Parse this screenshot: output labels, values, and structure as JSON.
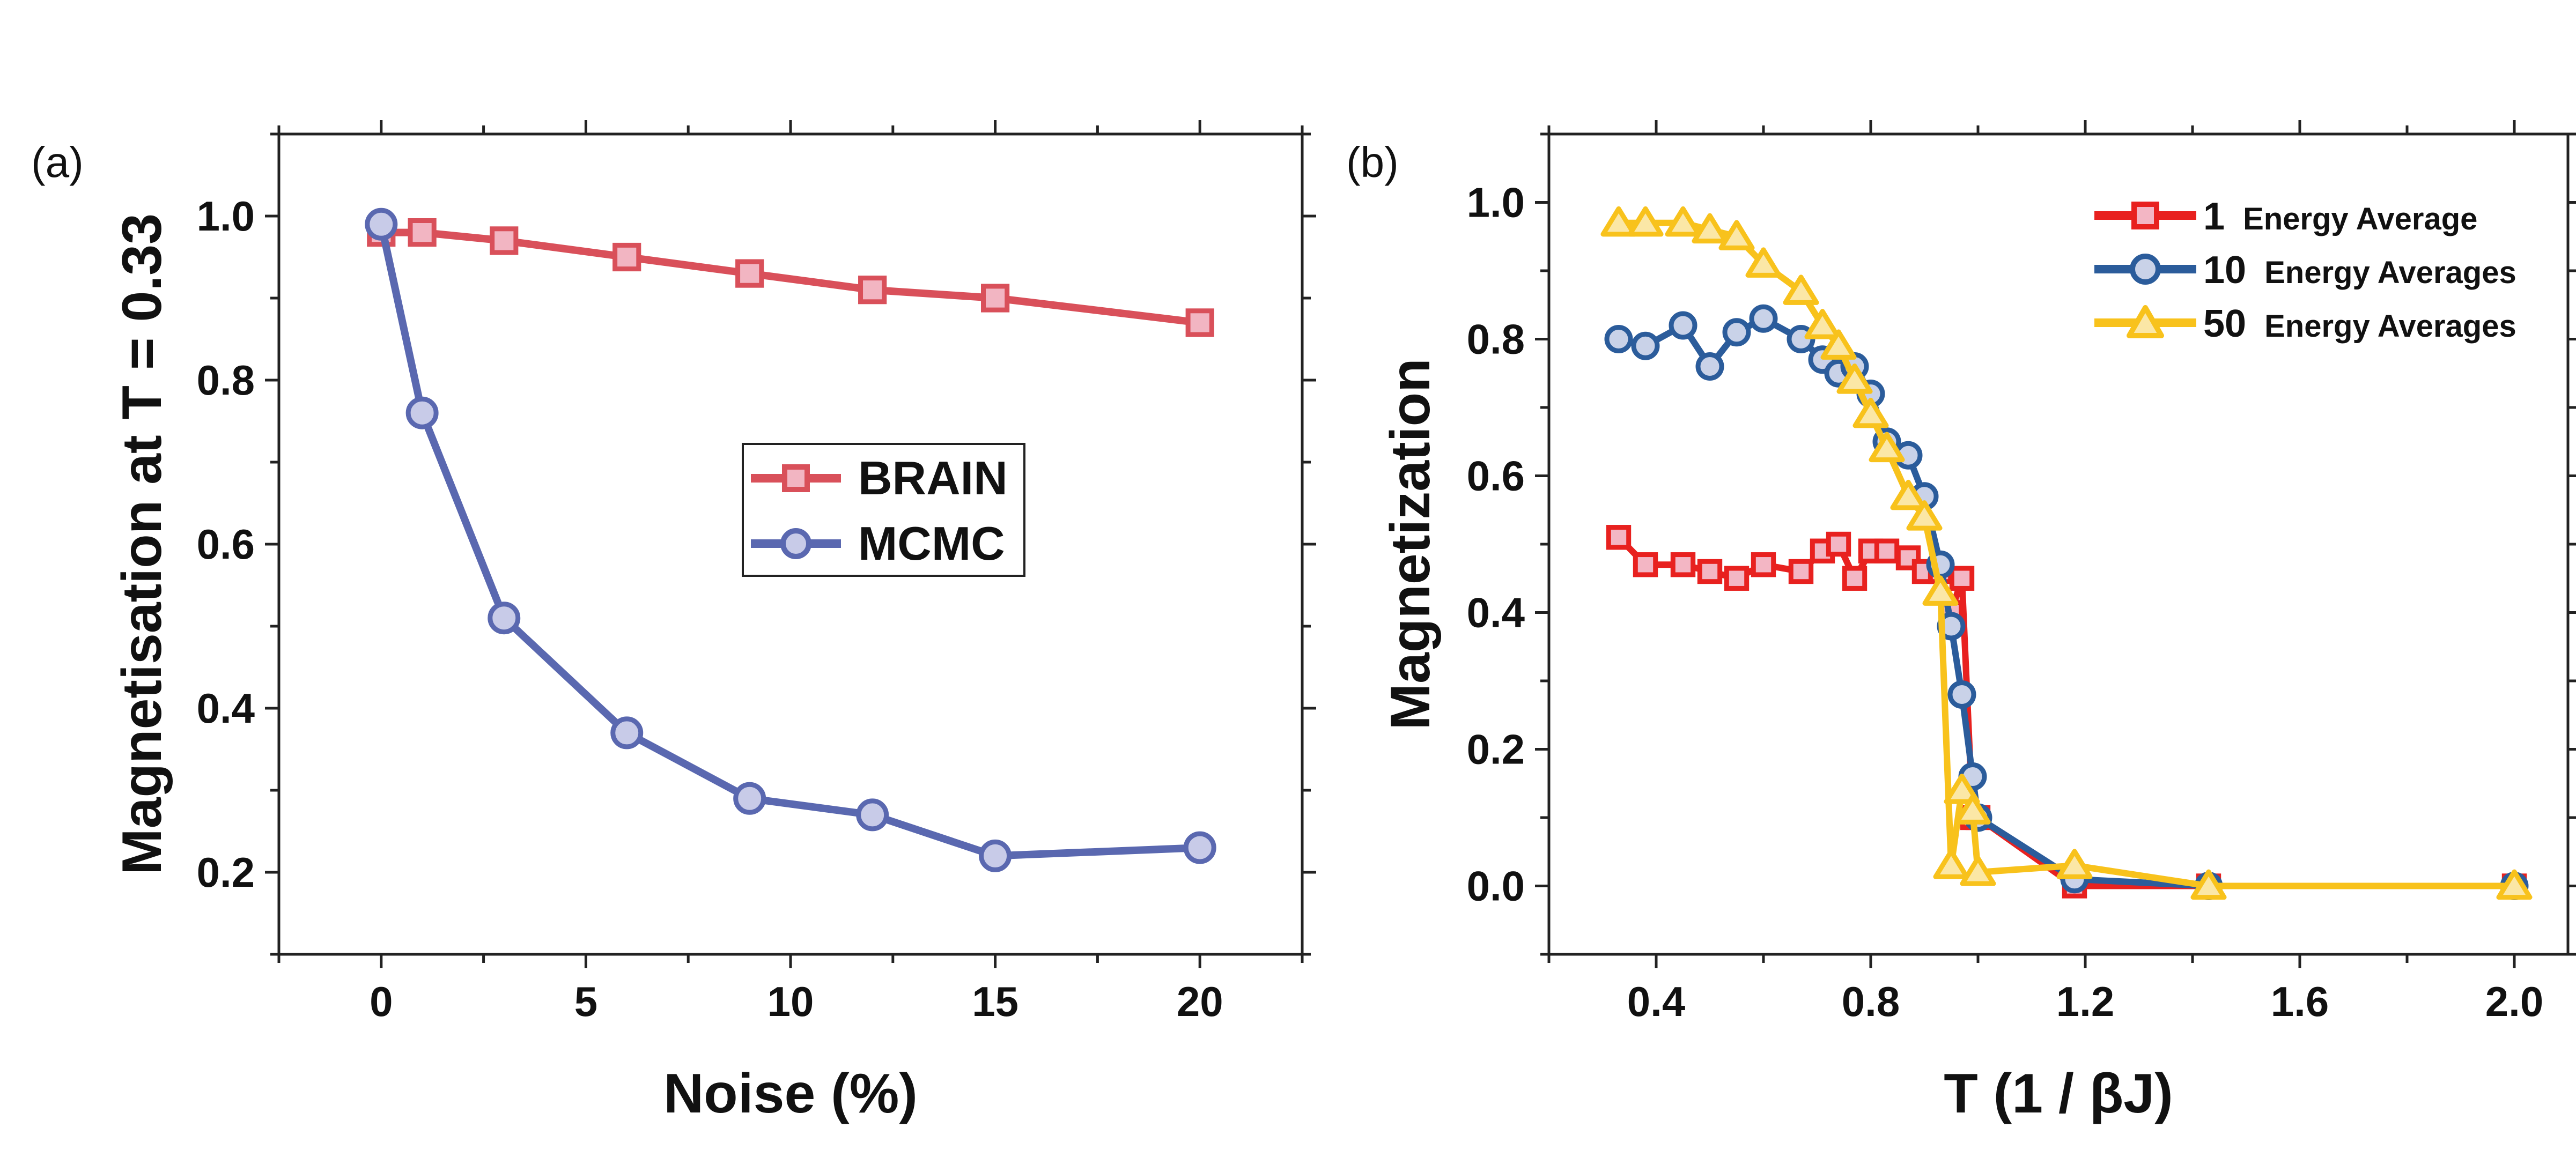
{
  "chart_data": [
    {
      "panel_label": "(a)",
      "type": "line",
      "xlabel": "Noise (%)",
      "ylabel": "Magnetisation at T = 0.33",
      "xlim": [
        -2.5,
        22.5
      ],
      "ylim": [
        0.1,
        1.1
      ],
      "xticks": [
        0,
        5,
        10,
        15,
        20
      ],
      "yticks": [
        0.2,
        0.4,
        0.6,
        0.8,
        1.0
      ],
      "xtick_labels": [
        "0",
        "5",
        "10",
        "15",
        "20"
      ],
      "ytick_labels": [
        "0.2",
        "0.4",
        "0.6",
        "0.8",
        "1.0"
      ],
      "legend_position": "center-right",
      "series": [
        {
          "name": "BRAIN",
          "color": "#d9505a",
          "fill": "#f2b5c2",
          "marker": "square",
          "x": [
            0,
            1,
            3,
            6,
            9,
            12,
            15,
            20
          ],
          "y": [
            0.98,
            0.98,
            0.97,
            0.95,
            0.93,
            0.91,
            0.9,
            0.87
          ]
        },
        {
          "name": "MCMC",
          "color": "#5a68b0",
          "fill": "#c8cbe8",
          "marker": "circle",
          "x": [
            0,
            1,
            3,
            6,
            9,
            12,
            15,
            20
          ],
          "y": [
            0.99,
            0.76,
            0.51,
            0.37,
            0.29,
            0.27,
            0.22,
            0.23
          ]
        }
      ]
    },
    {
      "panel_label": "(b)",
      "type": "line",
      "xlabel": "T (1 / βJ)",
      "ylabel": "Magnetization",
      "xlim": [
        0.2,
        2.1
      ],
      "ylim": [
        -0.1,
        1.1
      ],
      "xticks": [
        0.4,
        0.8,
        1.2,
        1.6,
        2.0
      ],
      "yticks": [
        0.0,
        0.2,
        0.4,
        0.6,
        0.8,
        1.0
      ],
      "xtick_labels": [
        "0.4",
        "0.8",
        "1.2",
        "1.6",
        "2.0"
      ],
      "ytick_labels": [
        "0.0",
        "0.2",
        "0.4",
        "0.6",
        "0.8",
        "1.0"
      ],
      "legend_position": "top-right",
      "series": [
        {
          "name_number": "1",
          "name_rest": "Energy Average",
          "color": "#e8211f",
          "fill": "#f3b6c4",
          "marker": "square",
          "x": [
            0.33,
            0.38,
            0.45,
            0.5,
            0.55,
            0.6,
            0.67,
            0.71,
            0.74,
            0.77,
            0.8,
            0.83,
            0.87,
            0.9,
            0.93,
            0.95,
            0.97,
            0.99,
            1.0,
            1.18,
            1.43,
            2.0
          ],
          "y": [
            0.51,
            0.47,
            0.47,
            0.46,
            0.45,
            0.47,
            0.46,
            0.49,
            0.5,
            0.45,
            0.49,
            0.49,
            0.48,
            0.46,
            0.46,
            0.4,
            0.45,
            0.1,
            0.1,
            0.0,
            0.0,
            0.0
          ]
        },
        {
          "name_number": "10",
          "name_rest": "Energy Averages",
          "color": "#2b5c9b",
          "fill": "#c9d2e8",
          "marker": "circle",
          "x": [
            0.33,
            0.38,
            0.45,
            0.5,
            0.55,
            0.6,
            0.67,
            0.71,
            0.74,
            0.77,
            0.8,
            0.83,
            0.87,
            0.9,
            0.93,
            0.95,
            0.97,
            0.99,
            1.0,
            1.18,
            1.43,
            2.0
          ],
          "y": [
            0.8,
            0.79,
            0.82,
            0.76,
            0.81,
            0.83,
            0.8,
            0.77,
            0.75,
            0.76,
            0.72,
            0.65,
            0.63,
            0.57,
            0.47,
            0.38,
            0.28,
            0.16,
            0.1,
            0.01,
            0.0,
            0.0
          ]
        },
        {
          "name_number": "50",
          "name_rest": "Energy Averages",
          "color": "#f8c21c",
          "fill": "#fbe7a6",
          "marker": "triangle",
          "x": [
            0.33,
            0.38,
            0.45,
            0.5,
            0.55,
            0.6,
            0.67,
            0.71,
            0.74,
            0.77,
            0.8,
            0.83,
            0.87,
            0.9,
            0.93,
            0.95,
            0.97,
            0.99,
            1.0,
            1.18,
            1.43,
            2.0
          ],
          "y": [
            0.97,
            0.97,
            0.97,
            0.96,
            0.95,
            0.91,
            0.87,
            0.82,
            0.79,
            0.74,
            0.69,
            0.64,
            0.57,
            0.54,
            0.43,
            0.03,
            0.14,
            0.11,
            0.02,
            0.03,
            0.0,
            0.0
          ]
        }
      ]
    }
  ]
}
